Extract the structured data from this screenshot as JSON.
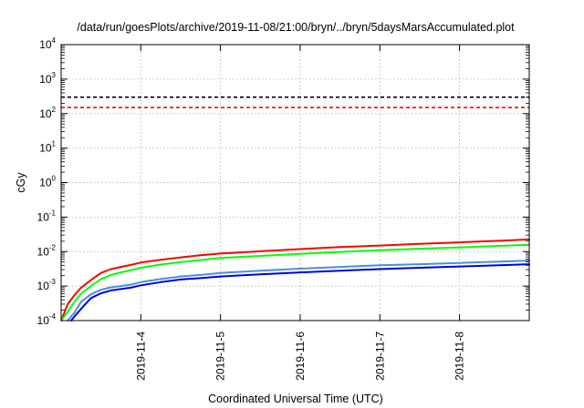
{
  "chart_data": {
    "type": "line",
    "title": "/data/run/goesPlots/archive/2019-11-08/21:00/bryn/../bryn/5daysMarsAccumulated.plot",
    "xlabel": "Coordinated Universal Time (UTC)",
    "ylabel": "cGy",
    "y_scale": "log",
    "ylim": [
      0.0001,
      10000
    ],
    "xlim": [
      "2019-11-03T00:00",
      "2019-11-08T21:00"
    ],
    "x_ticks": [
      "2019-11-4",
      "2019-11-5",
      "2019-11-6",
      "2019-11-7",
      "2019-11-8"
    ],
    "y_ticks": [
      {
        "base": "10",
        "exp": "-4"
      },
      {
        "base": "10",
        "exp": "-3"
      },
      {
        "base": "10",
        "exp": "-2"
      },
      {
        "base": "10",
        "exp": "-1"
      },
      {
        "base": "10",
        "exp": "0"
      },
      {
        "base": "10",
        "exp": "1"
      },
      {
        "base": "10",
        "exp": "2"
      },
      {
        "base": "10",
        "exp": "3"
      },
      {
        "base": "10",
        "exp": "4"
      }
    ],
    "grid": true,
    "reference_lines": [
      {
        "value": 300,
        "color": "#000000",
        "style": "dashed"
      },
      {
        "value": 150,
        "color": "#ff0000",
        "style": "dashed"
      }
    ],
    "series": [
      {
        "color": "#ff0000",
        "x": [
          "2019-11-03T00:00",
          "2019-11-03T02:00",
          "2019-11-03T04:00",
          "2019-11-03T06:00",
          "2019-11-03T09:00",
          "2019-11-03T12:00",
          "2019-11-03T15:00",
          "2019-11-03T18:00",
          "2019-11-03T21:00",
          "2019-11-04T00:00",
          "2019-11-04T06:00",
          "2019-11-04T12:00",
          "2019-11-04T18:00",
          "2019-11-05T00:00",
          "2019-11-05T12:00",
          "2019-11-06T00:00",
          "2019-11-06T12:00",
          "2019-11-07T00:00",
          "2019-11-07T12:00",
          "2019-11-08T00:00",
          "2019-11-08T12:00",
          "2019-11-08T21:00"
        ],
        "values": [
          0.0001,
          0.0003,
          0.00055,
          0.0009,
          0.0015,
          0.0024,
          0.0031,
          0.0036,
          0.0041,
          0.0048,
          0.0058,
          0.0068,
          0.0078,
          0.0088,
          0.0102,
          0.0118,
          0.0135,
          0.015,
          0.0168,
          0.0185,
          0.0205,
          0.0225
        ]
      },
      {
        "color": "#00ff00",
        "x": [
          "2019-11-03T00:00",
          "2019-11-03T02:00",
          "2019-11-03T04:00",
          "2019-11-03T06:00",
          "2019-11-03T09:00",
          "2019-11-03T12:00",
          "2019-11-03T15:00",
          "2019-11-03T18:00",
          "2019-11-03T21:00",
          "2019-11-04T00:00",
          "2019-11-04T06:00",
          "2019-11-04T12:00",
          "2019-11-04T18:00",
          "2019-11-05T00:00",
          "2019-11-05T12:00",
          "2019-11-06T00:00",
          "2019-11-06T12:00",
          "2019-11-07T00:00",
          "2019-11-07T12:00",
          "2019-11-08T00:00",
          "2019-11-08T12:00",
          "2019-11-08T21:00"
        ],
        "values": [
          0.0001,
          0.00018,
          0.00035,
          0.0006,
          0.001,
          0.0016,
          0.0021,
          0.0025,
          0.0029,
          0.0034,
          0.0042,
          0.005,
          0.0057,
          0.0065,
          0.0075,
          0.0086,
          0.0098,
          0.0109,
          0.0121,
          0.0133,
          0.0146,
          0.0158
        ]
      },
      {
        "color": "#4a8fe0",
        "x": [
          "2019-11-03T02:00",
          "2019-11-03T04:00",
          "2019-11-03T06:00",
          "2019-11-03T09:00",
          "2019-11-03T12:00",
          "2019-11-03T15:00",
          "2019-11-03T18:00",
          "2019-11-03T21:00",
          "2019-11-04T00:00",
          "2019-11-04T06:00",
          "2019-11-04T12:00",
          "2019-11-04T18:00",
          "2019-11-05T00:00",
          "2019-11-05T12:00",
          "2019-11-06T00:00",
          "2019-11-06T12:00",
          "2019-11-07T00:00",
          "2019-11-07T12:00",
          "2019-11-08T00:00",
          "2019-11-08T12:00",
          "2019-11-08T21:00"
        ],
        "values": [
          0.0001,
          0.00017,
          0.00035,
          0.00058,
          0.00078,
          0.00092,
          0.001,
          0.0011,
          0.0013,
          0.0016,
          0.0019,
          0.0021,
          0.0024,
          0.0028,
          0.0032,
          0.0036,
          0.004,
          0.0043,
          0.0047,
          0.0051,
          0.0055
        ]
      },
      {
        "color": "#0000e0",
        "x": [
          "2019-11-03T03:00",
          "2019-11-03T05:00",
          "2019-11-03T07:00",
          "2019-11-03T09:00",
          "2019-11-03T12:00",
          "2019-11-03T15:00",
          "2019-11-03T18:00",
          "2019-11-03T21:00",
          "2019-11-04T00:00",
          "2019-11-04T06:00",
          "2019-11-04T12:00",
          "2019-11-04T18:00",
          "2019-11-05T00:00",
          "2019-11-05T12:00",
          "2019-11-06T00:00",
          "2019-11-06T12:00",
          "2019-11-07T00:00",
          "2019-11-07T12:00",
          "2019-11-08T00:00",
          "2019-11-08T12:00",
          "2019-11-08T21:00"
        ],
        "values": [
          0.0001,
          0.00017,
          0.00028,
          0.00045,
          0.00062,
          0.00075,
          0.00082,
          0.0009,
          0.00105,
          0.0013,
          0.00155,
          0.0017,
          0.0019,
          0.0022,
          0.0025,
          0.0028,
          0.0031,
          0.0034,
          0.0037,
          0.004,
          0.0043
        ]
      }
    ]
  }
}
